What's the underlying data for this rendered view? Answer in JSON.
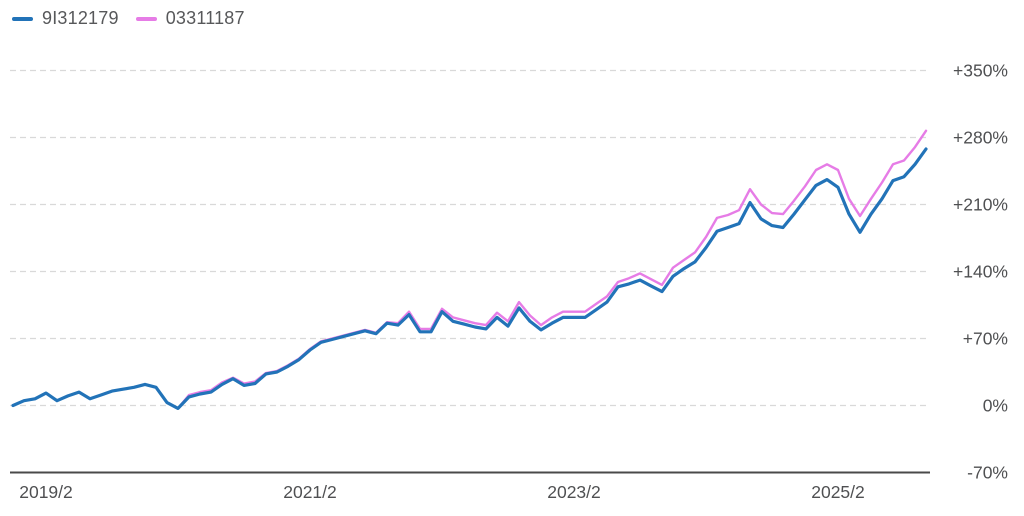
{
  "chart_data": {
    "type": "line",
    "title": "",
    "xlabel": "",
    "ylabel": "",
    "grid": "horizontal-dashed",
    "legend_position": "top-left",
    "ylim": [
      -70,
      350
    ],
    "yticks": [
      350,
      280,
      210,
      140,
      70,
      0,
      -70
    ],
    "ytick_labels": [
      "+350%",
      "+280%",
      "+210%",
      "+140%",
      "+70%",
      "0%",
      "-70%"
    ],
    "baseline_tick": -70,
    "xticks": [
      "2019/2",
      "2021/2",
      "2023/2",
      "2025/2"
    ],
    "x": [
      "2018/11",
      "2018/12",
      "2019/1",
      "2019/2",
      "2019/3",
      "2019/4",
      "2019/5",
      "2019/6",
      "2019/7",
      "2019/8",
      "2019/9",
      "2019/10",
      "2019/11",
      "2019/12",
      "2020/1",
      "2020/2",
      "2020/3",
      "2020/4",
      "2020/5",
      "2020/6",
      "2020/7",
      "2020/8",
      "2020/9",
      "2020/10",
      "2020/11",
      "2020/12",
      "2021/1",
      "2021/2",
      "2021/3",
      "2021/4",
      "2021/5",
      "2021/6",
      "2021/7",
      "2021/8",
      "2021/9",
      "2021/10",
      "2021/11",
      "2021/12",
      "2022/1",
      "2022/2",
      "2022/3",
      "2022/4",
      "2022/5",
      "2022/6",
      "2022/7",
      "2022/8",
      "2022/9",
      "2022/10",
      "2022/11",
      "2022/12",
      "2023/1",
      "2023/2",
      "2023/3",
      "2023/4",
      "2023/5",
      "2023/6",
      "2023/7",
      "2023/8",
      "2023/9",
      "2023/10",
      "2023/11",
      "2023/12",
      "2024/1",
      "2024/2",
      "2024/3",
      "2024/4",
      "2024/5",
      "2024/6",
      "2024/7",
      "2024/8",
      "2024/9",
      "2024/10",
      "2024/11",
      "2024/12",
      "2025/1",
      "2025/2",
      "2025/3",
      "2025/4",
      "2025/5",
      "2025/6",
      "2025/7",
      "2025/8",
      "2025/9",
      "2025/10"
    ],
    "series": [
      {
        "name": "9I312179",
        "color": "#2273b8",
        "values": [
          0,
          5,
          7,
          13,
          5,
          10,
          14,
          7,
          11,
          15,
          17,
          19,
          22,
          19,
          3,
          -3,
          9,
          12,
          14,
          22,
          28,
          21,
          23,
          33,
          35,
          41,
          48,
          58,
          66,
          69,
          72,
          75,
          78,
          75,
          86,
          84,
          95,
          77,
          77,
          98,
          88,
          85,
          82,
          80,
          92,
          83,
          102,
          88,
          79,
          86,
          92,
          92,
          92,
          100,
          108,
          124,
          127,
          131,
          125,
          119,
          135,
          143,
          150,
          165,
          182,
          186,
          190,
          212,
          195,
          188,
          186,
          200,
          215,
          230,
          236,
          228,
          200,
          181,
          200,
          216,
          235,
          239,
          252,
          268
        ]
      },
      {
        "name": "03311187",
        "color": "#e67ce6",
        "values": [
          0,
          5,
          7,
          13,
          5,
          10,
          14,
          7,
          11,
          15,
          17,
          19,
          22,
          19,
          3,
          -3,
          11,
          14,
          16,
          24,
          29,
          23,
          25,
          34,
          36,
          42,
          49,
          59,
          67,
          70,
          73,
          76,
          79,
          76,
          87,
          86,
          98,
          80,
          80,
          101,
          92,
          89,
          86,
          84,
          97,
          88,
          108,
          94,
          84,
          92,
          98,
          98,
          98,
          106,
          114,
          129,
          133,
          138,
          132,
          126,
          144,
          152,
          160,
          176,
          196,
          199,
          204,
          226,
          210,
          201,
          200,
          214,
          229,
          246,
          252,
          246,
          216,
          198,
          216,
          233,
          252,
          256,
          270,
          287
        ]
      }
    ]
  }
}
